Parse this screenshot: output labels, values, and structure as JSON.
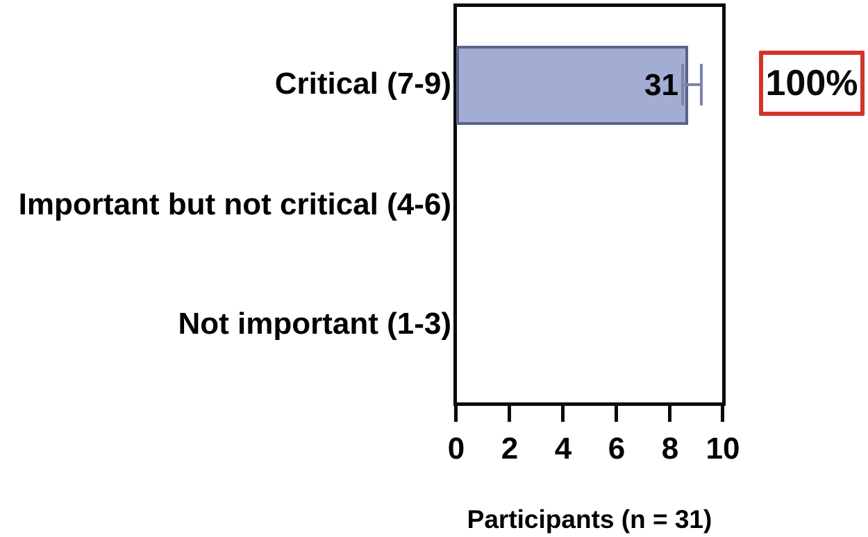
{
  "chart_data": {
    "type": "bar",
    "orientation": "horizontal",
    "title": "",
    "xlabel": "Participants (n = 31)",
    "ylabel": "",
    "categories": [
      "Critical (7-9)",
      "Important but not critical (4-6)",
      "Not important (1-3)"
    ],
    "series": [
      {
        "name": "Participants",
        "values": [
          31,
          0,
          0
        ]
      }
    ],
    "bar_value_labels": [
      "31",
      "",
      ""
    ],
    "percent_annotations": [
      "100%",
      "",
      ""
    ],
    "n_total": 31,
    "xlim": [
      0,
      10
    ],
    "x_tick_labels": [
      "0",
      "2",
      "4",
      "6",
      "8",
      "10"
    ],
    "grid": false,
    "legend": false,
    "bar_extent_axis_units": [
      8.7,
      0,
      0
    ],
    "error_bar_axis_units": {
      "low": 8.5,
      "high": 9.2
    },
    "colors": {
      "bar_fill": "#a3acd2",
      "bar_border": "#5a6389",
      "error_bar": "#7b85a9",
      "axis": "#0a0a0a",
      "annotation_border": "#d2342a",
      "text": "#000000",
      "background": "#ffffff"
    }
  }
}
